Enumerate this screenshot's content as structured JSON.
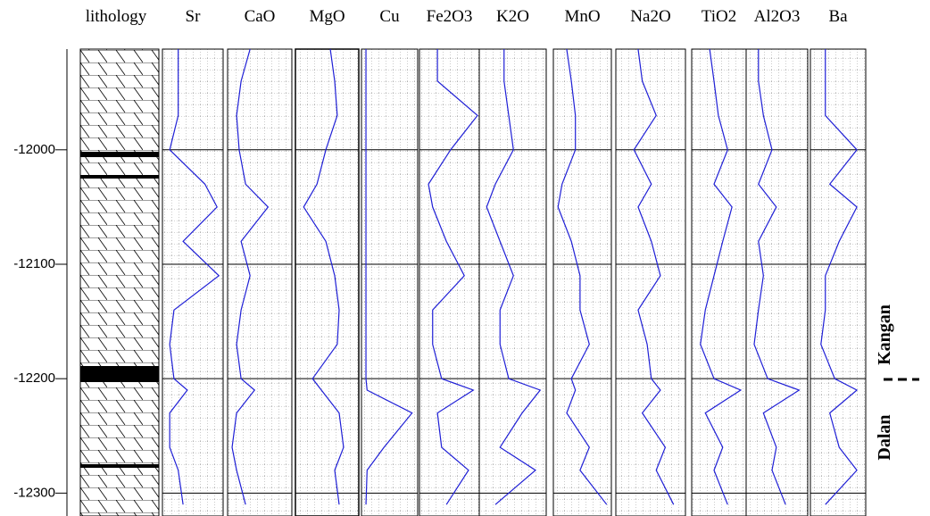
{
  "chart_data": {
    "type": "line",
    "lithology_label": "lithology",
    "y": [
      -11912,
      -11940,
      -11970,
      -12000,
      -12030,
      -12050,
      -12080,
      -12110,
      -12140,
      -12170,
      -12200,
      -12210,
      -12230,
      -12260,
      -12280,
      -12310
    ],
    "ylim": [
      -12320,
      -11912
    ],
    "yticks": [
      -12300,
      -12200,
      -12100,
      -12000
    ],
    "xlim": [
      0,
      100
    ],
    "grid": true,
    "color": "#1f1fd6",
    "series": [
      {
        "name": "Sr",
        "values": [
          26,
          26,
          26,
          12,
          70,
          90,
          34,
          93,
          19,
          12,
          19,
          41,
          12,
          12,
          26,
          34
        ]
      },
      {
        "name": "CaO",
        "values": [
          35,
          21,
          14,
          18,
          28,
          63,
          21,
          35,
          21,
          14,
          21,
          42,
          14,
          7,
          14,
          28
        ]
      },
      {
        "name": "MgO",
        "values": [
          55,
          62,
          66,
          48,
          34,
          13,
          48,
          62,
          69,
          66,
          27,
          41,
          69,
          76,
          62,
          69
        ]
      },
      {
        "name": "Cu",
        "values": [
          8,
          8,
          8,
          8,
          8,
          8,
          8,
          8,
          8,
          8,
          8,
          10,
          90,
          40,
          10,
          8
        ]
      },
      {
        "name": "Fe2O3",
        "values": [
          30,
          30,
          97,
          52,
          15,
          22,
          45,
          75,
          22,
          22,
          37,
          90,
          30,
          37,
          82,
          45
        ]
      },
      {
        "name": "K2O",
        "values": [
          37,
          37,
          44,
          51,
          24,
          11,
          31,
          51,
          31,
          31,
          44,
          91,
          64,
          31,
          84,
          24
        ]
      },
      {
        "name": "MnO",
        "values": [
          23,
          31,
          38,
          38,
          15,
          8,
          31,
          46,
          46,
          62,
          31,
          38,
          23,
          62,
          46,
          92
        ]
      },
      {
        "name": "Na2O",
        "values": [
          32,
          38,
          58,
          26,
          51,
          32,
          51,
          64,
          32,
          45,
          51,
          64,
          38,
          71,
          58,
          83
        ]
      },
      {
        "name": "TiO2",
        "values": [
          33,
          41,
          49,
          66,
          41,
          74,
          57,
          41,
          25,
          16,
          41,
          90,
          25,
          57,
          41,
          66
        ]
      },
      {
        "name": "Al2O3",
        "values": [
          20,
          20,
          28,
          42,
          20,
          49,
          20,
          28,
          20,
          13,
          35,
          86,
          28,
          49,
          42,
          64
        ]
      },
      {
        "name": "Ba",
        "values": [
          27,
          27,
          27,
          84,
          35,
          84,
          52,
          27,
          27,
          19,
          44,
          84,
          35,
          52,
          84,
          27
        ]
      }
    ],
    "annotations": [
      "Kangan",
      "Dalan"
    ]
  }
}
